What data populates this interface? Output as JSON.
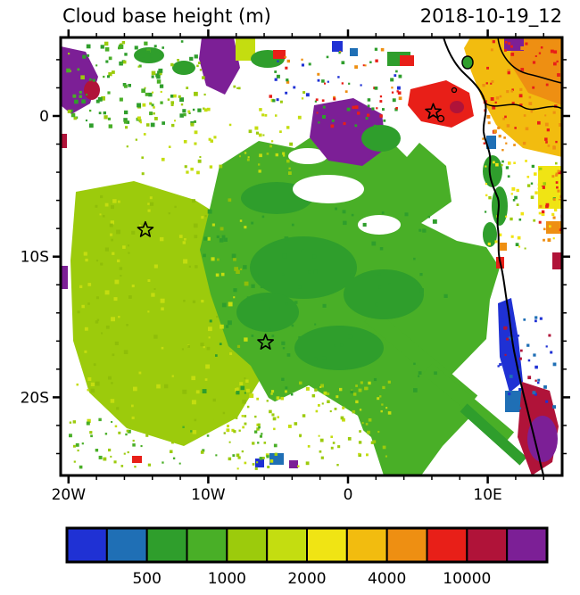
{
  "title": "Cloud base height (m)",
  "datetime": "2018-10-19_12",
  "chart_data": {
    "type": "heatmap",
    "title": "Cloud base height (m)",
    "timestamp": "2018-10-19_12",
    "units": "m",
    "x_axis": {
      "ticks": [
        {
          "label": "20W",
          "lon": -20
        },
        {
          "label": "10W",
          "lon": -10
        },
        {
          "label": "0",
          "lon": 0
        },
        {
          "label": "10E",
          "lon": 10
        }
      ],
      "range_deg": [
        -20.5,
        15.4
      ]
    },
    "y_axis": {
      "ticks": [
        {
          "label": "0",
          "lat": 0
        },
        {
          "label": "10S",
          "lat": -10
        },
        {
          "label": "20S",
          "lat": -20
        }
      ],
      "range_deg": [
        5.6,
        -25.6
      ]
    },
    "colorbar": {
      "colors": [
        "#1f31d4",
        "#1f6fb5",
        "#2f9e2c",
        "#49af27",
        "#9ccb0c",
        "#c4dd10",
        "#f0e414",
        "#f2bc0f",
        "#ee8f12",
        "#e81f18",
        "#b01339",
        "#7c1f96"
      ],
      "tick_labels": [
        "500",
        "1000",
        "2000",
        "4000",
        "10000"
      ],
      "tick_boundary_indices": [
        2,
        4,
        6,
        8,
        10
      ]
    },
    "markers": [
      {
        "type": "star",
        "lon": -14.5,
        "lat": -8.1
      },
      {
        "type": "star",
        "lon": -5.9,
        "lat": -16.1
      },
      {
        "type": "star",
        "lon": 6.1,
        "lat": 0.3
      }
    ],
    "regions_described": [
      {
        "color": "medium green (500-1000 m)",
        "where": "large marine stratocumulus deck over central and eastern South Atlantic, with diagonal streaks toward the Angolan coast"
      },
      {
        "color": "yellow-green (1000-2000 m)",
        "where": "western/southwestern sector and speckled patches bottom-center and bottom-left"
      },
      {
        "color": "amber/orange (2000-10000 m)",
        "where": "African land areas in the top-right corner"
      },
      {
        "color": "red (~10000 m)",
        "where": "blob near the Gulf of Guinea islands around 6E,0 and speckles over land top-right"
      },
      {
        "color": "purple/maroon (>10000 m)",
        "where": "top-left corner, two patches along the top, and southeast coastal corner"
      },
      {
        "color": "blue/teal (<500 m)",
        "where": "sliver along the lower Angolan coast and scattered specks"
      },
      {
        "color": "white",
        "where": "cloud-free gaps in the upper-left-center and bottom-center of the domain"
      }
    ]
  }
}
